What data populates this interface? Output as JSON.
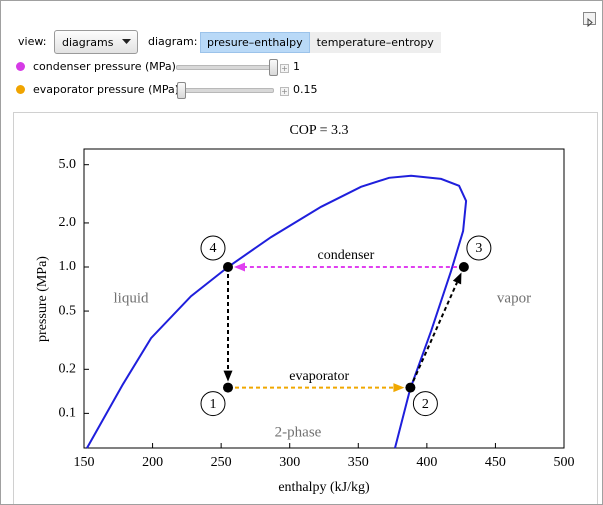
{
  "controls": {
    "view_label": "view:",
    "view_value": "diagrams",
    "diagram_label": "diagram:",
    "tabs": [
      "presure–enthalpy",
      "temperature–entropy"
    ],
    "selected_tab": 0,
    "sliders": [
      {
        "label": "condenser pressure (MPa)",
        "value": 1,
        "color": "#d63be6"
      },
      {
        "label": "evaporator pressure (MPa)",
        "value": 0.15,
        "color": "#f0a400"
      }
    ]
  },
  "chart_data": {
    "type": "line",
    "title": "COP = 3.3",
    "xlabel": "enthalpy (kJ/kg)",
    "ylabel": "pressure (MPa)",
    "xlim": [
      150,
      500
    ],
    "ylim": [
      0.058,
      6.4
    ],
    "log_y": true,
    "xticks": [
      150,
      200,
      250,
      300,
      350,
      400,
      450,
      500
    ],
    "yticks": [
      0.1,
      0.2,
      0.5,
      {
        "value": 1,
        "label": "1.0"
      },
      {
        "value": 2,
        "label": "2.0"
      },
      {
        "value": 5,
        "label": "5.0"
      }
    ],
    "series": [
      {
        "color": "#1f1fdc",
        "x": [
          152.2,
          178.4,
          198.9,
          228,
          255,
          286.4,
          322.9,
          352,
          372.5,
          388.5,
          410.4,
          423.5,
          428.6,
          426.4,
          417.7,
          403.1,
          387.8,
          376.8
        ],
        "values": [
          0.058,
          0.158,
          0.327,
          0.632,
          1.0,
          1.6,
          2.58,
          3.53,
          4.07,
          4.2,
          4.0,
          3.59,
          2.83,
          1.76,
          0.94,
          0.365,
          0.146,
          0.058
        ]
      }
    ],
    "cycle_points": [
      {
        "label": "4",
        "x": 255,
        "y": 1.0,
        "arrow_color": "#000000"
      },
      {
        "label": "1",
        "x": 255,
        "y": 0.15,
        "arrow_color": "#f0a800",
        "process": "evaporator"
      },
      {
        "label": "2",
        "x": 388,
        "y": 0.15,
        "arrow_color": "#000000"
      },
      {
        "label": "3",
        "x": 427,
        "y": 1.0,
        "arrow_color": "#e040f0",
        "process": "condenser"
      }
    ],
    "region_labels": [
      "liquid",
      "vapor",
      "2-phase"
    ]
  }
}
